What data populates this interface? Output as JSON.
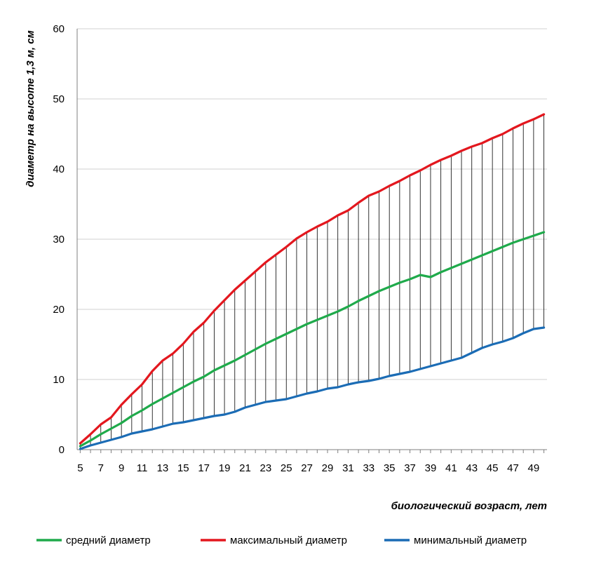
{
  "chart_data": {
    "type": "line",
    "title": "",
    "xlabel": "биологический возраст, лет",
    "ylabel": "диаметр на высоте 1,3 м, см",
    "x": [
      5,
      6,
      7,
      8,
      9,
      10,
      11,
      12,
      13,
      14,
      15,
      16,
      17,
      18,
      19,
      20,
      21,
      22,
      23,
      24,
      25,
      26,
      27,
      28,
      29,
      30,
      31,
      32,
      33,
      34,
      35,
      36,
      37,
      38,
      39,
      40,
      41,
      42,
      43,
      44,
      45,
      46,
      47,
      48,
      49,
      50
    ],
    "x_tick_labels": [
      "5",
      "7",
      "9",
      "11",
      "13",
      "15",
      "17",
      "19",
      "21",
      "23",
      "25",
      "27",
      "29",
      "31",
      "33",
      "35",
      "37",
      "39",
      "41",
      "43",
      "45",
      "47",
      "49"
    ],
    "ylim": [
      0,
      60
    ],
    "y_ticks": [
      "0",
      "10",
      "20",
      "30",
      "40",
      "50",
      "60"
    ],
    "grid": "horizontal",
    "drop_lines": true,
    "legend_position": "bottom",
    "series": [
      {
        "name": "средний диаметр",
        "color": "#1faa4b",
        "values": [
          0.5,
          1.3,
          2.2,
          3.0,
          3.8,
          4.8,
          5.6,
          6.5,
          7.3,
          8.1,
          8.9,
          9.7,
          10.4,
          11.3,
          12.0,
          12.7,
          13.5,
          14.3,
          15.1,
          15.8,
          16.5,
          17.2,
          17.9,
          18.5,
          19.1,
          19.7,
          20.4,
          21.2,
          21.9,
          22.6,
          23.2,
          23.8,
          24.3,
          24.9,
          24.6,
          25.3,
          25.9,
          26.5,
          27.1,
          27.7,
          28.3,
          28.9,
          29.5,
          30.0,
          30.5,
          31.0
        ]
      },
      {
        "name": "максимальный диаметр",
        "color": "#e3171e",
        "values": [
          0.9,
          2.2,
          3.6,
          4.6,
          6.4,
          7.9,
          9.3,
          11.2,
          12.7,
          13.7,
          15.1,
          16.8,
          18.1,
          19.8,
          21.3,
          22.8,
          24.1,
          25.4,
          26.7,
          27.8,
          28.9,
          30.1,
          31.0,
          31.8,
          32.5,
          33.4,
          34.1,
          35.2,
          36.2,
          36.8,
          37.6,
          38.3,
          39.1,
          39.8,
          40.6,
          41.3,
          41.9,
          42.6,
          43.2,
          43.7,
          44.4,
          45.0,
          45.8,
          46.5,
          47.1,
          47.8
        ]
      },
      {
        "name": "минимальный диаметр",
        "color": "#1b6cb5",
        "values": [
          0.1,
          0.6,
          1.0,
          1.4,
          1.8,
          2.3,
          2.6,
          2.9,
          3.3,
          3.7,
          3.9,
          4.2,
          4.5,
          4.8,
          5.0,
          5.4,
          6.0,
          6.4,
          6.8,
          7.0,
          7.2,
          7.6,
          8.0,
          8.3,
          8.7,
          8.9,
          9.3,
          9.6,
          9.8,
          10.1,
          10.5,
          10.8,
          11.1,
          11.5,
          11.9,
          12.3,
          12.7,
          13.1,
          13.8,
          14.5,
          15.0,
          15.4,
          15.9,
          16.6,
          17.2,
          17.4
        ]
      }
    ]
  }
}
